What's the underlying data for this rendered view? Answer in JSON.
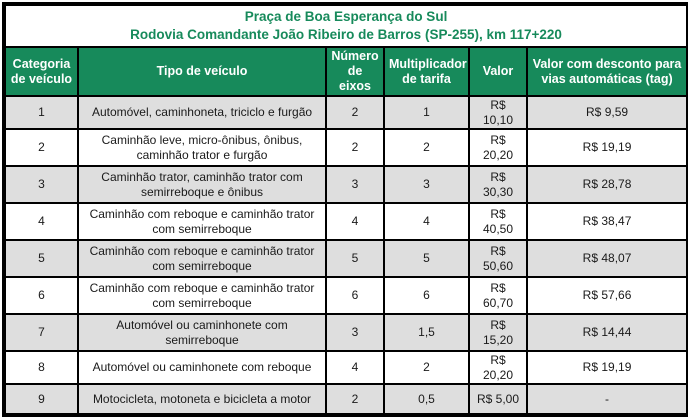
{
  "title": {
    "line1": "Praça de Boa Esperança do Sul",
    "line2": "Rodovia Comandante João Ribeiro de Barros (SP-255), km 117+220"
  },
  "columns": {
    "categoria": "Categoria de veículo",
    "tipo": "Tipo de veículo",
    "eixos": "Número de eixos",
    "multiplicador": "Multiplicador de tarifa",
    "valor": "Valor",
    "valor_tag": "Valor com desconto para vias automáticas (tag)"
  },
  "rows": [
    {
      "categoria": "1",
      "tipo": "Automóvel, caminhoneta, triciclo e furgão",
      "eixos": "2",
      "multiplicador": "1",
      "valor": "R$ 10,10",
      "valor_tag": "R$ 9,59"
    },
    {
      "categoria": "2",
      "tipo": "Caminhão leve, micro-ônibus, ônibus, caminhão trator e furgão",
      "eixos": "2",
      "multiplicador": "2",
      "valor": "R$ 20,20",
      "valor_tag": "R$ 19,19"
    },
    {
      "categoria": "3",
      "tipo": "Caminhão trator, caminhão trator com semirreboque e ônibus",
      "eixos": "3",
      "multiplicador": "3",
      "valor": "R$ 30,30",
      "valor_tag": "R$ 28,78"
    },
    {
      "categoria": "4",
      "tipo": "Caminhão com reboque e caminhão trator com semirreboque",
      "eixos": "4",
      "multiplicador": "4",
      "valor": "R$ 40,50",
      "valor_tag": "R$ 38,47"
    },
    {
      "categoria": "5",
      "tipo": "Caminhão com reboque e caminhão trator com semirreboque",
      "eixos": "5",
      "multiplicador": "5",
      "valor": "R$ 50,60",
      "valor_tag": "R$ 48,07"
    },
    {
      "categoria": "6",
      "tipo": "Caminhão com reboque e caminhão trator com semirreboque",
      "eixos": "6",
      "multiplicador": "6",
      "valor": "R$ 60,70",
      "valor_tag": "R$ 57,66"
    },
    {
      "categoria": "7",
      "tipo": "Automóvel ou caminhonete com semirreboque",
      "eixos": "3",
      "multiplicador": "1,5",
      "valor": "R$ 15,20",
      "valor_tag": "R$ 14,44"
    },
    {
      "categoria": "8",
      "tipo": "Automóvel ou caminhonete com reboque",
      "eixos": "4",
      "multiplicador": "2",
      "valor": "R$ 20,20",
      "valor_tag": "R$ 19,19"
    },
    {
      "categoria": "9",
      "tipo": "Motocicleta, motoneta e bicicleta a motor",
      "eixos": "2",
      "multiplicador": "0,5",
      "valor": "R$ 5,00",
      "valor_tag": "-"
    }
  ],
  "colors": {
    "header_bg": "#178a5b",
    "header_text": "#ffffff",
    "title_text": "#178a5b",
    "row_alt_bg": "#dedede",
    "border": "#000000"
  }
}
